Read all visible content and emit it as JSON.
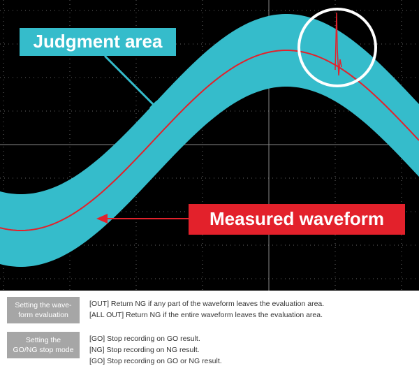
{
  "callouts": {
    "judgment_area": "Judgment area",
    "measured_waveform": "Measured waveform"
  },
  "settings": [
    {
      "label": [
        "Setting the wave-",
        "form evaluation"
      ],
      "lines": [
        "[OUT] Return NG if any part of the waveform leaves the evaluation area.",
        "[ALL OUT] Return NG if the entire waveform leaves the evaluation area."
      ]
    },
    {
      "label": [
        "Setting the",
        "GO/NG stop mode"
      ],
      "lines": [
        "[GO] Stop recording on GO result.",
        "[NG] Stop recording on NG result.",
        "[GO] Stop recording on GO or NG result."
      ]
    }
  ]
}
